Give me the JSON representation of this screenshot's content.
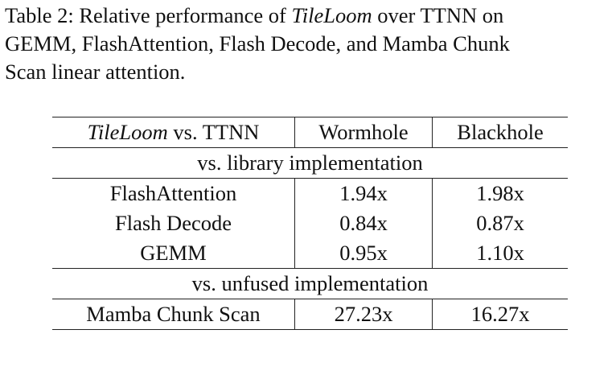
{
  "caption": {
    "lines": [
      {
        "before": "Table 2: Relative performance of",
        "emph": "TileLoom",
        "after": "over TTNN on"
      },
      {
        "text": "GEMM, FlashAttention, Flash Decode, and Mamba Chunk"
      },
      {
        "text": "Scan linear attention."
      }
    ]
  },
  "table": {
    "header": [
      {
        "emph": "TileLoom",
        "text": "vs. TTNN"
      },
      "Wormhole",
      "Blackhole"
    ],
    "sections": [
      {
        "title": "vs. library implementation",
        "rows": [
          [
            "FlashAttention",
            "1.94x",
            "1.98x"
          ],
          [
            "Flash Decode",
            "0.84x",
            "0.87x"
          ],
          [
            "GEMM",
            "0.95x",
            "1.10x"
          ]
        ]
      },
      {
        "title": "vs. unfused implementation",
        "rows": [
          [
            "Mamba Chunk Scan",
            "27.23x",
            "16.27x"
          ]
        ]
      }
    ]
  }
}
